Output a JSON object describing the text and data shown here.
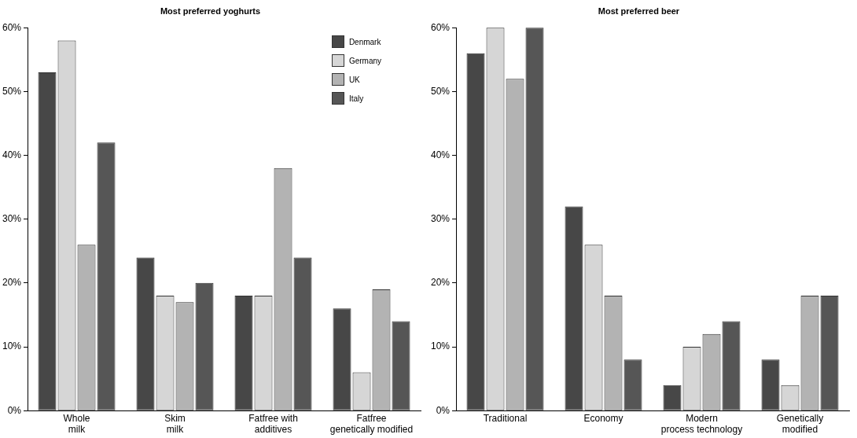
{
  "chart_data": [
    {
      "type": "bar",
      "title": "Most preferred yoghurts",
      "categories": [
        "Whole\nmilk",
        "Skim\nmilk",
        "Fatfree with\nadditives",
        "Fatfree\ngenetically modified"
      ],
      "series": [
        {
          "name": "Denmark",
          "color": "#474747",
          "values": [
            53,
            24,
            18,
            16
          ]
        },
        {
          "name": "Germany",
          "color": "#d6d6d6",
          "values": [
            58,
            18,
            18,
            6
          ]
        },
        {
          "name": "UK",
          "color": "#b3b3b3",
          "values": [
            26,
            17,
            38,
            19
          ]
        },
        {
          "name": "Italy",
          "color": "#565656",
          "values": [
            42,
            20,
            24,
            14
          ]
        }
      ],
      "ylim": [
        0,
        60
      ],
      "yticks": [
        {
          "value": 0,
          "label": "0%"
        },
        {
          "value": 10,
          "label": "10%"
        },
        {
          "value": 20,
          "label": "20%"
        },
        {
          "value": 30,
          "label": "30%"
        },
        {
          "value": 40,
          "label": "40%"
        },
        {
          "value": 50,
          "label": "50%"
        },
        {
          "value": 60,
          "label": "60%"
        }
      ],
      "grid": false,
      "legend": "top right"
    },
    {
      "type": "bar",
      "title": "Most preferred beer",
      "categories": [
        "Traditional",
        "Economy",
        "Modern\nprocess technology",
        "Genetically\nmodified"
      ],
      "series": [
        {
          "color": "#474747",
          "values": [
            56,
            32,
            4,
            8
          ]
        },
        {
          "color": "#d6d6d6",
          "values": [
            60,
            26,
            10,
            4
          ]
        },
        {
          "color": "#b3b3b3",
          "values": [
            52,
            18,
            12,
            18
          ]
        },
        {
          "color": "#565656",
          "values": [
            60,
            8,
            14,
            18
          ]
        }
      ],
      "ylim": [
        0,
        60
      ],
      "yticks": [
        {
          "value": 0,
          "label": "0%"
        },
        {
          "value": 10,
          "label": "10%"
        },
        {
          "value": 20,
          "label": "20%"
        },
        {
          "value": 30,
          "label": "30%"
        },
        {
          "value": 40,
          "label": "40%"
        },
        {
          "value": 50,
          "label": "50%"
        },
        {
          "value": 60,
          "label": "60%"
        }
      ],
      "grid": false,
      "legend": false
    }
  ]
}
